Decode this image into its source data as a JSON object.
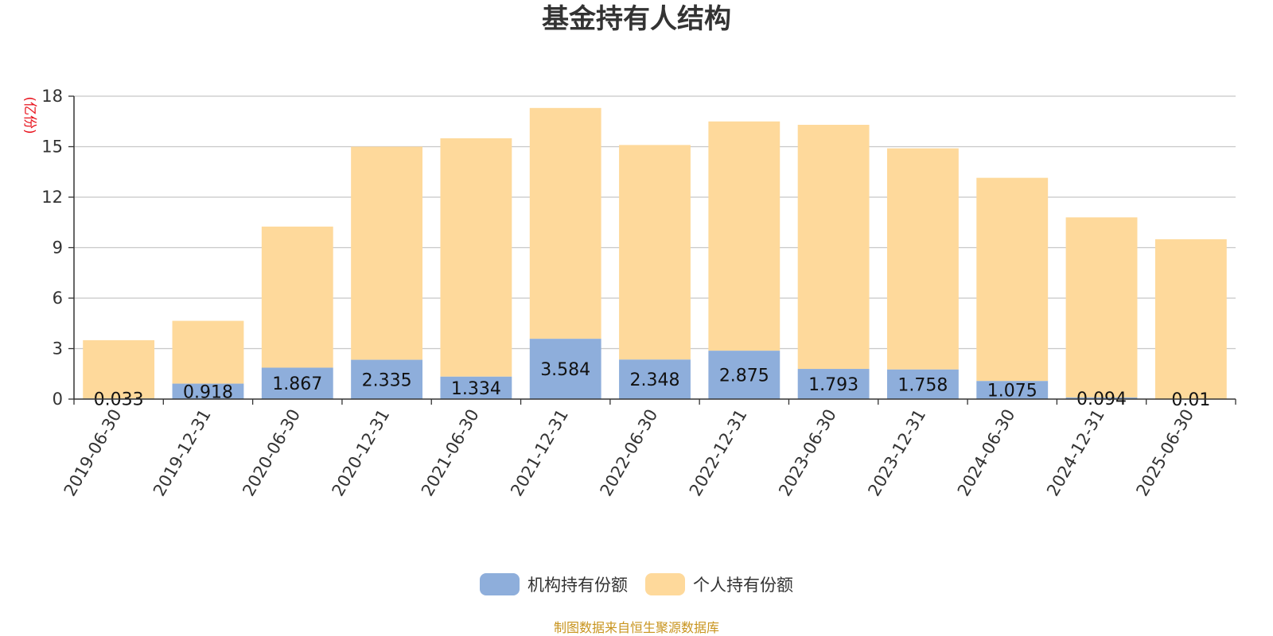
{
  "chart_data": {
    "type": "bar",
    "stacked": true,
    "title": "基金持有人结构",
    "ylabel": "(亿份)",
    "ylim": [
      0,
      18
    ],
    "yticks": [
      0,
      3,
      6,
      9,
      12,
      15,
      18
    ],
    "grid": true,
    "legend_position": "bottom",
    "categories": [
      "2019-06-30",
      "2019-12-31",
      "2020-06-30",
      "2020-12-31",
      "2021-06-30",
      "2021-12-31",
      "2022-06-30",
      "2022-12-31",
      "2023-06-30",
      "2023-12-31",
      "2024-06-30",
      "2024-12-31",
      "2025-06-30"
    ],
    "series": [
      {
        "name": "机构持有份额",
        "color": "#8eaedb",
        "values": [
          0.033,
          0.918,
          1.867,
          2.335,
          1.334,
          3.584,
          2.348,
          2.875,
          1.793,
          1.758,
          1.075,
          0.094,
          0.01
        ],
        "labels": [
          "0.033",
          "0.918",
          "1.867",
          "2.335",
          "1.334",
          "3.584",
          "2.348",
          "2.875",
          "1.793",
          "1.758",
          "1.075",
          "0.094",
          "0.01"
        ]
      },
      {
        "name": "个人持有份额",
        "color": "#fed99b",
        "values": [
          3.467,
          3.732,
          8.383,
          12.665,
          14.166,
          13.716,
          12.752,
          13.625,
          14.507,
          13.142,
          12.075,
          10.706,
          9.49
        ]
      }
    ]
  },
  "source_note": "制图数据来自恒生聚源数据库"
}
